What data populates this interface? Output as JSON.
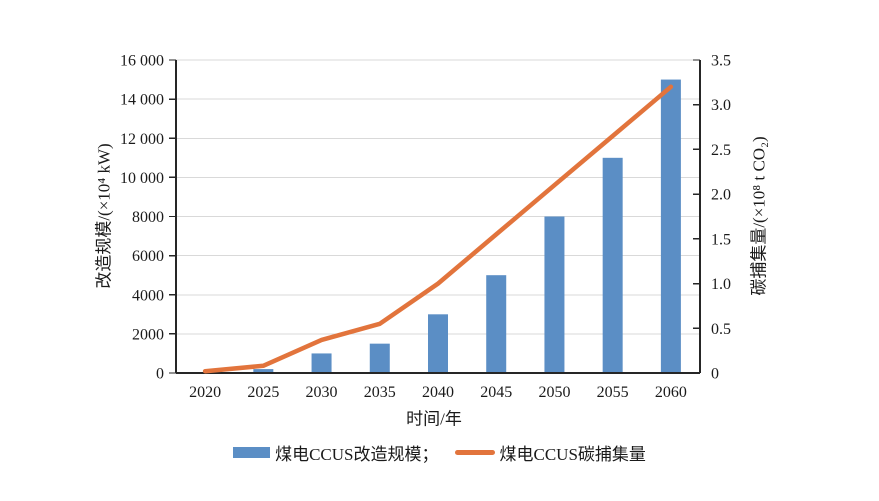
{
  "figure": {
    "background": "#ffffff",
    "axis_color": "#262626",
    "grid_color": "#d9d9d9",
    "text_color": "#1a1a1a"
  },
  "chart_data": {
    "type": "bar+line dual-axis",
    "categories": [
      "2020",
      "2025",
      "2030",
      "2035",
      "2040",
      "2045",
      "2050",
      "2055",
      "2060"
    ],
    "series": [
      {
        "name": "煤电CCUS改造规模",
        "type": "bar",
        "axis": "left",
        "color": "#5b8ec5",
        "values": [
          0,
          200,
          1000,
          1500,
          3000,
          5000,
          8000,
          11000,
          15000
        ]
      },
      {
        "name": "煤电CCUS碳捕集量",
        "type": "line",
        "axis": "right",
        "color": "#e2743c",
        "values": [
          0.02,
          0.08,
          0.37,
          0.55,
          1.0,
          1.55,
          2.1,
          2.65,
          3.2
        ]
      }
    ],
    "xlabel": "时间/年",
    "ylabel_left": "改造规模/(×10⁴ kW)",
    "ylabel_right": "碳捕集量/(×10⁸ t CO₂)",
    "left_axis": {
      "min": 0,
      "max": 16000,
      "ticks": [
        {
          "v": 0,
          "label": "0"
        },
        {
          "v": 2000,
          "label": "2000"
        },
        {
          "v": 4000,
          "label": "4000"
        },
        {
          "v": 6000,
          "label": "6000"
        },
        {
          "v": 8000,
          "label": "8000"
        },
        {
          "v": 10000,
          "label": "10 000"
        },
        {
          "v": 12000,
          "label": "12 000"
        },
        {
          "v": 14000,
          "label": "14 000"
        },
        {
          "v": 16000,
          "label": "16 000"
        }
      ]
    },
    "right_axis": {
      "min": 0,
      "max": 3.5,
      "ticks": [
        {
          "v": 0,
          "label": "0"
        },
        {
          "v": 0.5,
          "label": "0.5"
        },
        {
          "v": 1.0,
          "label": "1.0"
        },
        {
          "v": 1.5,
          "label": "1.5"
        },
        {
          "v": 2.0,
          "label": "2.0"
        },
        {
          "v": 2.5,
          "label": "2.5"
        },
        {
          "v": 3.0,
          "label": "3.0"
        },
        {
          "v": 3.5,
          "label": "3.5"
        }
      ]
    },
    "grid": "horizontal",
    "legend_position": "bottom"
  },
  "legend": {
    "items": [
      {
        "label": "煤电CCUS改造规模；",
        "swatch": "bar",
        "color": "#5b8ec5"
      },
      {
        "label": "煤电CCUS碳捕集量",
        "swatch": "line",
        "color": "#e2743c"
      }
    ]
  }
}
